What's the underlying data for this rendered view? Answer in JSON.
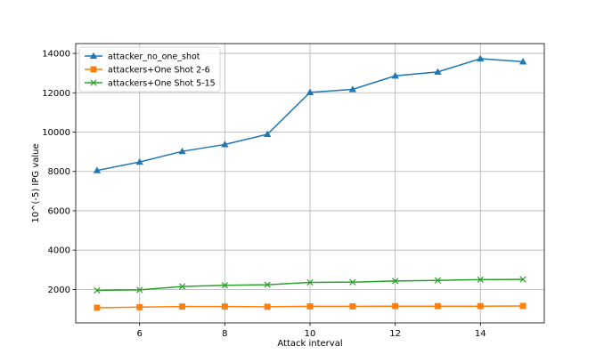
{
  "chart_data": {
    "type": "line",
    "title": "",
    "xlabel": "Attack interval",
    "ylabel": "10^(-5) IPG value",
    "xlim": [
      4.5,
      15.5
    ],
    "ylim": [
      300,
      14500
    ],
    "xticks": [
      6,
      8,
      10,
      12,
      14
    ],
    "yticks": [
      2000,
      4000,
      6000,
      8000,
      10000,
      12000,
      14000
    ],
    "grid": true,
    "legend_position": "top-left",
    "x": [
      5,
      6,
      7,
      8,
      9,
      10,
      11,
      12,
      13,
      14,
      15
    ],
    "series": [
      {
        "name": "attacker_no_one_shot",
        "color": "#1f77b4",
        "marker": "triangle",
        "values": [
          8050,
          8480,
          9020,
          9370,
          9890,
          12020,
          12170,
          12860,
          13060,
          13730,
          13580
        ]
      },
      {
        "name": "attackers+One Shot 2-6",
        "color": "#ff7f0e",
        "marker": "square",
        "values": [
          1070,
          1100,
          1130,
          1130,
          1120,
          1140,
          1140,
          1150,
          1150,
          1150,
          1160
        ]
      },
      {
        "name": "attackers+One Shot 5-15",
        "color": "#2ca02c",
        "marker": "x",
        "values": [
          1950,
          1980,
          2150,
          2210,
          2240,
          2360,
          2370,
          2430,
          2460,
          2500,
          2510
        ]
      }
    ]
  }
}
